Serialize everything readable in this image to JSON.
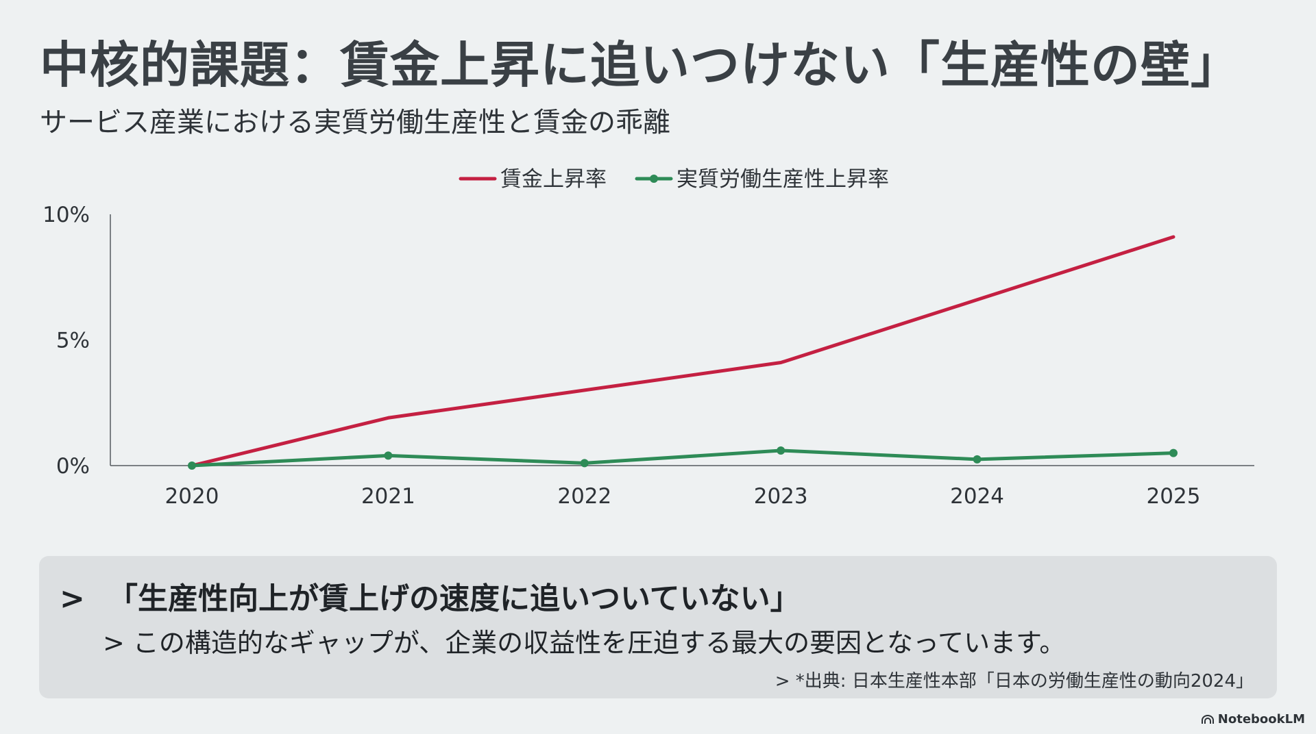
{
  "title": "中核的課題：賃金上昇に追いつけない「生産性の壁」",
  "subtitle": "サービス産業における実質労働生産性と賃金の乖離",
  "chart_data": {
    "type": "line",
    "x": [
      "2020",
      "2021",
      "2022",
      "2023",
      "2024",
      "2025"
    ],
    "series": [
      {
        "name": "賃金上昇率",
        "values": [
          0,
          1.9,
          3.0,
          4.1,
          6.6,
          9.1
        ],
        "color": "#c42042",
        "markers": false
      },
      {
        "name": "実質労働生産性上昇率",
        "values": [
          0,
          0.4,
          0.1,
          0.6,
          0.25,
          0.5
        ],
        "color": "#2e8b57",
        "markers": true
      }
    ],
    "y_ticks": [
      "0%",
      "5%",
      "10%"
    ],
    "y_tick_values": [
      0,
      5,
      10
    ],
    "ylim": [
      0,
      10
    ],
    "grid": false,
    "legend_position": "top-center"
  },
  "callout": {
    "marker": ">",
    "headline": "「生産性向上が賃上げの速度に追いついていない」",
    "detail": "> この構造的なギャップが、企業の収益性を圧迫する最大の要因となっています。",
    "source": "> *出典: 日本生産性本部「日本の労働生産性の動向2024」"
  },
  "brand": {
    "label": "NotebookLM",
    "icon": "notebooklm-logo-icon"
  }
}
